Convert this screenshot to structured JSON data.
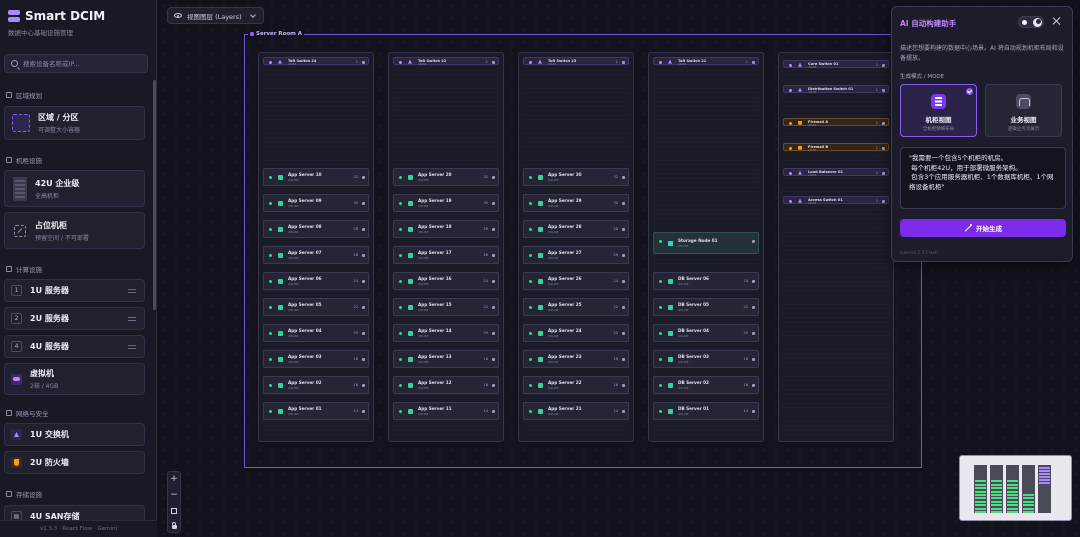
{
  "app": {
    "title": "Smart DCIM",
    "subtitle": "数据中心基础设施管理",
    "version": "v1.3.3 · React Flow · Gemini"
  },
  "search": {
    "placeholder": "搜索设备名称或IP..."
  },
  "sidebar": {
    "sections": [
      {
        "title": "区域规划"
      },
      {
        "title": "机柜设施"
      },
      {
        "title": "计算设施"
      },
      {
        "title": "网络与安全"
      },
      {
        "title": "存储设施"
      }
    ],
    "zone": {
      "title": "区域 / 分区",
      "sub": "可调整大小容器"
    },
    "rack42": {
      "title": "42U 企业级",
      "sub": "全高机柜"
    },
    "placeholder": {
      "title": "占位机柜",
      "sub": "预留空间 / 不可部署"
    },
    "servers": [
      {
        "badge": "1",
        "label": "1U 服务器"
      },
      {
        "badge": "2",
        "label": "2U 服务器"
      },
      {
        "badge": "4",
        "label": "4U 服务器"
      }
    ],
    "vm": {
      "title": "虚拟机",
      "sub": "2核 / 4GB"
    },
    "network": [
      {
        "label": "1U 交换机"
      },
      {
        "label": "2U 防火墙"
      }
    ],
    "storage_peek": "4U SAN存储"
  },
  "toolbar": {
    "layers_label": "视图图层 (Layers)"
  },
  "canvas": {
    "room_label": "Server Room A",
    "racks": [
      {
        "network": [
          {
            "name": "ToR Switch 24",
            "num": "1"
          }
        ],
        "devices": [
          {
            "name": "App Server 10",
            "num": "32"
          },
          {
            "name": "App Server 09",
            "num": "30"
          },
          {
            "name": "App Server 08",
            "num": "28"
          },
          {
            "name": "App Server 07",
            "num": "26"
          },
          {
            "name": "App Server 06",
            "num": "24"
          },
          {
            "name": "App Server 05",
            "num": "22"
          },
          {
            "name": "App Server 04",
            "num": "20"
          },
          {
            "name": "App Server 03",
            "num": "18"
          },
          {
            "name": "App Server 02",
            "num": "16"
          },
          {
            "name": "App Server 01",
            "num": "14"
          }
        ]
      },
      {
        "network": [
          {
            "name": "ToR Switch 22",
            "num": "1"
          }
        ],
        "devices": [
          {
            "name": "App Server 20",
            "num": "32"
          },
          {
            "name": "App Server 19",
            "num": "30"
          },
          {
            "name": "App Server 18",
            "num": "28"
          },
          {
            "name": "App Server 17",
            "num": "26"
          },
          {
            "name": "App Server 16",
            "num": "24"
          },
          {
            "name": "App Server 15",
            "num": "22"
          },
          {
            "name": "App Server 14",
            "num": "20"
          },
          {
            "name": "App Server 13",
            "num": "18"
          },
          {
            "name": "App Server 12",
            "num": "16"
          },
          {
            "name": "App Server 11",
            "num": "14"
          }
        ]
      },
      {
        "network": [
          {
            "name": "ToR Switch 23",
            "num": "1"
          }
        ],
        "devices": [
          {
            "name": "App Server 30",
            "num": "32"
          },
          {
            "name": "App Server 29",
            "num": "30"
          },
          {
            "name": "App Server 28",
            "num": "28"
          },
          {
            "name": "App Server 27",
            "num": "26"
          },
          {
            "name": "App Server 26",
            "num": "24"
          },
          {
            "name": "App Server 25",
            "num": "22"
          },
          {
            "name": "App Server 24",
            "num": "20"
          },
          {
            "name": "App Server 23",
            "num": "18"
          },
          {
            "name": "App Server 22",
            "num": "16"
          },
          {
            "name": "App Server 21",
            "num": "14"
          }
        ]
      },
      {
        "network": [
          {
            "name": "ToR Switch 21",
            "num": "1"
          }
        ],
        "storage": {
          "name": "Storage Node 01",
          "num": ""
        },
        "devices": [
          {
            "name": "DB Server 06",
            "num": "24"
          },
          {
            "name": "DB Server 05",
            "num": "22"
          },
          {
            "name": "DB Server 04",
            "num": "20"
          },
          {
            "name": "DB Server 03",
            "num": "18"
          },
          {
            "name": "DB Server 02",
            "num": "16"
          },
          {
            "name": "DB Server 01",
            "num": "14"
          }
        ]
      },
      {
        "network": [
          {
            "name": "Core Switch 01",
            "num": "1"
          },
          {
            "name": "Distribution Switch 01",
            "num": "1"
          },
          {
            "name": "Firewall A",
            "num": "1",
            "fw": true
          },
          {
            "name": "Firewall B",
            "num": "1",
            "fw": true
          },
          {
            "name": "Load Balancer 01",
            "num": "1"
          },
          {
            "name": "Access Switch 01",
            "num": "1"
          }
        ]
      }
    ]
  },
  "ai_panel": {
    "title": "AI 自动构建助手",
    "description": "描述您想要构建的数据中心场景。AI 将自动规划机柜布局和设备摆放。",
    "mode_label": "生成模式 / MODE",
    "modes": [
      {
        "title": "机柜视图",
        "sub": "全机柜精细布局"
      },
      {
        "title": "业务视图",
        "sub": "逻辑业务流展示"
      }
    ],
    "prompt": "\"我需要一个包含5个机柜的机房。\n 每个机柜42U，用于部署微服务架构。\n 包含3个应用服务器机柜、1个数据库机柜、1个网络设备机柜\"",
    "generate_label": "开始生成",
    "footer": "Gemini 2.5 Flash"
  },
  "colors": {
    "accent": "#8b5cf6",
    "server_status": "#34d399",
    "firewall": "#f59e0b",
    "generate_button": "#7c2bea"
  }
}
